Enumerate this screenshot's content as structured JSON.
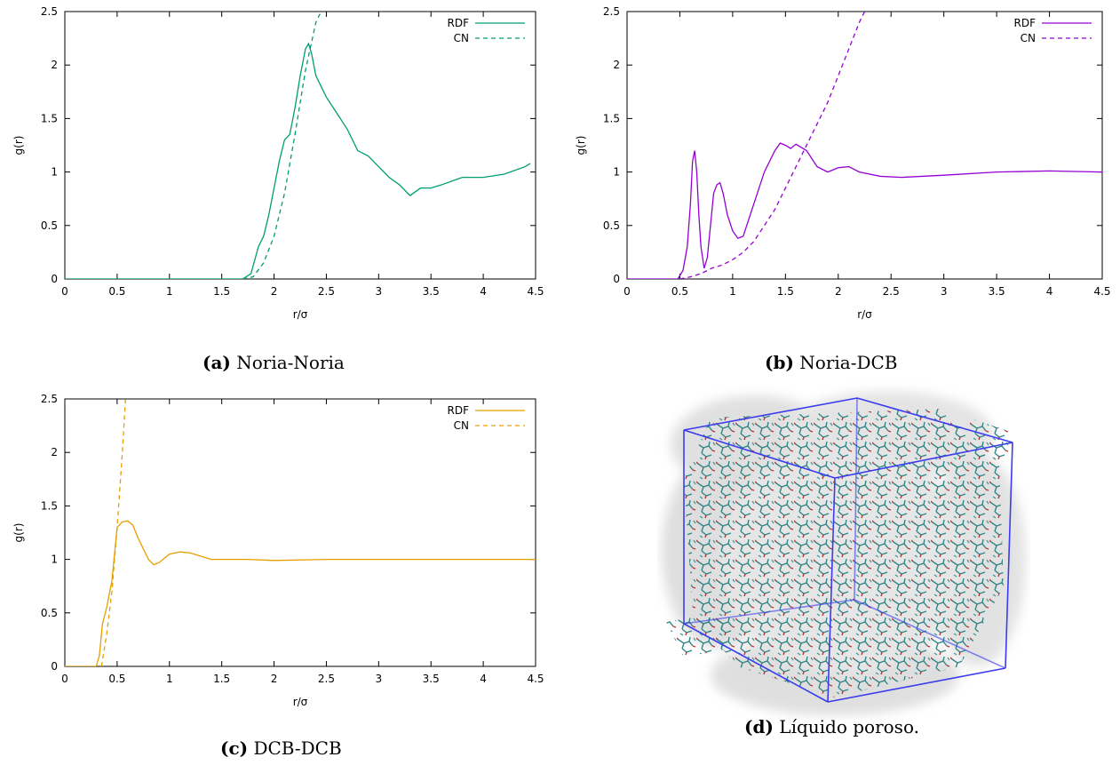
{
  "chart_data": [
    {
      "type": "line",
      "panel_label": "(a)",
      "caption": "Noria-Noria",
      "xlabel": "r/σ",
      "ylabel": "g(r)",
      "xlim": [
        0,
        4.5
      ],
      "ylim": [
        0,
        2.5
      ],
      "xticks": [
        "0",
        "0.5",
        "1",
        "1.5",
        "2",
        "2.5",
        "3",
        "3.5",
        "4",
        "4.5"
      ],
      "yticks": [
        "0",
        "0.5",
        "1",
        "1.5",
        "2",
        "2.5"
      ],
      "legend_position": "top-right",
      "color": "#009e73",
      "series": [
        {
          "name": "RDF",
          "style": "solid",
          "x": [
            0,
            1.7,
            1.78,
            1.85,
            1.9,
            1.95,
            2.0,
            2.05,
            2.1,
            2.15,
            2.2,
            2.25,
            2.3,
            2.33,
            2.36,
            2.4,
            2.45,
            2.5,
            2.6,
            2.7,
            2.8,
            2.9,
            3.0,
            3.1,
            3.2,
            3.3,
            3.4,
            3.5,
            3.6,
            3.8,
            3.9,
            4.0,
            4.2,
            4.4,
            4.45
          ],
          "y": [
            0,
            0,
            0.05,
            0.3,
            0.4,
            0.6,
            0.85,
            1.1,
            1.3,
            1.35,
            1.6,
            1.9,
            2.15,
            2.2,
            2.1,
            1.9,
            1.8,
            1.7,
            1.55,
            1.4,
            1.2,
            1.15,
            1.05,
            0.95,
            0.88,
            0.78,
            0.85,
            0.85,
            0.88,
            0.95,
            0.95,
            0.95,
            0.98,
            1.05,
            1.08
          ]
        },
        {
          "name": "CN",
          "style": "dashed",
          "x": [
            1.7,
            1.8,
            1.9,
            2.0,
            2.1,
            2.2,
            2.3,
            2.4,
            2.45
          ],
          "y": [
            0,
            0.02,
            0.15,
            0.4,
            0.8,
            1.35,
            1.95,
            2.4,
            2.5
          ]
        }
      ]
    },
    {
      "type": "line",
      "panel_label": "(b)",
      "caption": "Noria-DCB",
      "xlabel": "r/σ",
      "ylabel": "g(r)",
      "xlim": [
        0,
        4.5
      ],
      "ylim": [
        0,
        2.5
      ],
      "xticks": [
        "0",
        "0.5",
        "1",
        "1.5",
        "2",
        "2.5",
        "3",
        "3.5",
        "4",
        "4.5"
      ],
      "yticks": [
        "0",
        "0.5",
        "1",
        "1.5",
        "2",
        "2.5"
      ],
      "legend_position": "top-right",
      "color": "#9400d3",
      "series": [
        {
          "name": "RDF",
          "style": "solid",
          "x": [
            0,
            0.48,
            0.53,
            0.57,
            0.6,
            0.62,
            0.64,
            0.66,
            0.68,
            0.7,
            0.73,
            0.76,
            0.79,
            0.82,
            0.85,
            0.88,
            0.91,
            0.95,
            1.0,
            1.05,
            1.1,
            1.2,
            1.3,
            1.4,
            1.45,
            1.5,
            1.55,
            1.6,
            1.7,
            1.8,
            1.9,
            2.0,
            2.1,
            2.2,
            2.4,
            2.6,
            3.0,
            3.5,
            4.0,
            4.5
          ],
          "y": [
            0,
            0,
            0.08,
            0.3,
            0.7,
            1.1,
            1.2,
            1.0,
            0.6,
            0.3,
            0.1,
            0.2,
            0.5,
            0.8,
            0.88,
            0.9,
            0.8,
            0.6,
            0.45,
            0.38,
            0.4,
            0.7,
            1.0,
            1.2,
            1.27,
            1.25,
            1.22,
            1.26,
            1.2,
            1.05,
            1.0,
            1.04,
            1.05,
            1.0,
            0.96,
            0.95,
            0.97,
            1.0,
            1.01,
            1.0
          ]
        },
        {
          "name": "CN",
          "style": "dashed",
          "x": [
            0.5,
            0.6,
            0.7,
            0.8,
            0.9,
            1.0,
            1.1,
            1.2,
            1.3,
            1.4,
            1.5,
            1.6,
            1.7,
            1.8,
            1.9,
            2.0,
            2.1,
            2.2,
            2.25
          ],
          "y": [
            0,
            0.02,
            0.05,
            0.1,
            0.13,
            0.18,
            0.25,
            0.35,
            0.5,
            0.65,
            0.85,
            1.05,
            1.25,
            1.45,
            1.65,
            1.9,
            2.15,
            2.4,
            2.5
          ]
        }
      ]
    },
    {
      "type": "line",
      "panel_label": "(c)",
      "caption": "DCB-DCB",
      "xlabel": "r/σ",
      "ylabel": "g(r)",
      "xlim": [
        0,
        4.5
      ],
      "ylim": [
        0,
        2.5
      ],
      "xticks": [
        "0",
        "0.5",
        "1",
        "1.5",
        "2",
        "2.5",
        "3",
        "3.5",
        "4",
        "4.5"
      ],
      "yticks": [
        "0",
        "0.5",
        "1",
        "1.5",
        "2",
        "2.5"
      ],
      "legend_position": "top-right",
      "color": "#e69f00",
      "series": [
        {
          "name": "RDF",
          "style": "solid",
          "x": [
            0,
            0.3,
            0.33,
            0.36,
            0.4,
            0.45,
            0.5,
            0.55,
            0.6,
            0.65,
            0.7,
            0.75,
            0.8,
            0.85,
            0.9,
            1.0,
            1.1,
            1.2,
            1.3,
            1.4,
            1.5,
            1.75,
            2.0,
            2.5,
            3.0,
            3.5,
            4.0,
            4.5
          ],
          "y": [
            0,
            0,
            0.1,
            0.4,
            0.55,
            0.8,
            1.3,
            1.35,
            1.36,
            1.32,
            1.2,
            1.1,
            1.0,
            0.95,
            0.97,
            1.05,
            1.07,
            1.06,
            1.03,
            1.0,
            1.0,
            1.0,
            0.99,
            1.0,
            1.0,
            1.0,
            1.0,
            1.0
          ]
        },
        {
          "name": "CN",
          "style": "dashed",
          "x": [
            0.35,
            0.4,
            0.45,
            0.5,
            0.55,
            0.58
          ],
          "y": [
            0,
            0.3,
            0.7,
            1.3,
            2.0,
            2.5
          ]
        }
      ]
    }
  ],
  "figure_d": {
    "panel_label": "(d)",
    "caption": "Líquido poroso."
  }
}
